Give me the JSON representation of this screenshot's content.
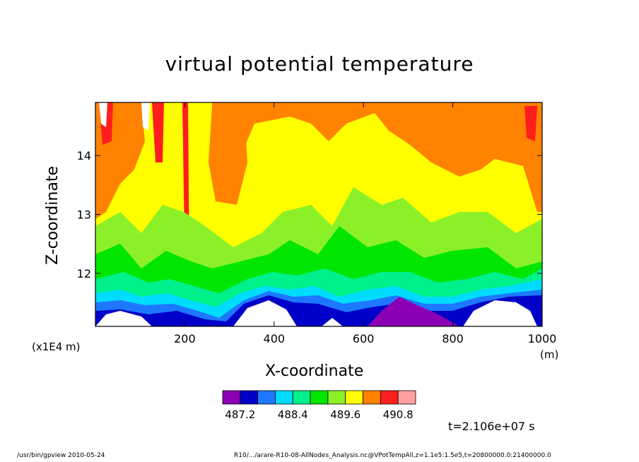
{
  "title": "virtual potential temperature",
  "footer": {
    "left": "/usr/bin/gpview   2010-05-24",
    "right": "R10/.../arare-R10-08-AllNodes_Analysis.nc@VPotTempAll,z=1.1e5:1.5e5,t=20800000.0:21400000.0"
  },
  "time_label": "t=2.106e+07 s",
  "colorbar": {
    "colors": [
      "#8b00b4",
      "#0000c8",
      "#1e78ff",
      "#00dcff",
      "#00f08c",
      "#00e600",
      "#8cf028",
      "#ffff00",
      "#ff8200",
      "#ff1e1e",
      "#ffa0a0"
    ],
    "tick_labels": [
      "487.2",
      "488.4",
      "489.6",
      "490.8"
    ]
  },
  "chart_data": {
    "type": "heatmap",
    "title": "virtual potential temperature",
    "xlabel": "X-coordinate",
    "ylabel": "Z-coordinate",
    "x_unit": "(m)",
    "x_scale_note": "(x1E4 m)",
    "xlim": [
      0,
      1000
    ],
    "ylim": [
      11.1,
      14.9
    ],
    "x_ticks": [
      200,
      400,
      600,
      800,
      1000
    ],
    "y_ticks": [
      12,
      13,
      14
    ],
    "levels": [
      487.2,
      487.5,
      487.8,
      488.1,
      488.4,
      488.7,
      489.0,
      489.3,
      489.6,
      489.9,
      490.2,
      490.5,
      490.8,
      491.1
    ],
    "field_range": [
      486.9,
      491.1
    ],
    "regions": [
      {
        "label": "orange",
        "value": 490.3
      },
      {
        "label": "yellow",
        "value": 489.7
      },
      {
        "label": "green",
        "value": 488.9
      },
      {
        "label": "blue",
        "value": 487.7
      },
      {
        "label": "purple",
        "value": 487.1
      }
    ]
  }
}
